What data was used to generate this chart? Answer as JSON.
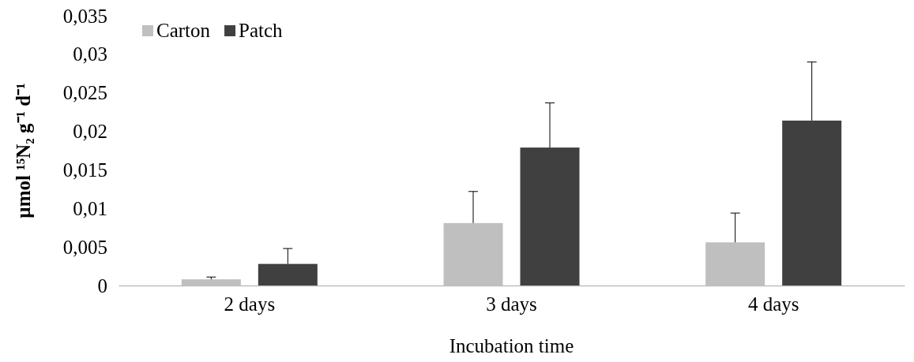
{
  "chart_data": {
    "type": "bar",
    "xlabel": "Incubation time",
    "ylabel": "µmol ¹⁵N₂ g⁻¹ d⁻¹",
    "categories": [
      "2 days",
      "3 days",
      "4 days"
    ],
    "series": [
      {
        "name": "Carton",
        "color": "#bfbfbf",
        "values": [
          0.0008,
          0.0081,
          0.0056
        ],
        "errors": [
          [
            0.0008,
            0.0011
          ],
          [
            0.0081,
            0.0122
          ],
          [
            0.0056,
            0.0094
          ]
        ]
      },
      {
        "name": "Patch",
        "color": "#404040",
        "values": [
          0.0028,
          0.0179,
          0.0214
        ],
        "errors": [
          [
            0.0028,
            0.0048
          ],
          [
            0.0179,
            0.0237
          ],
          [
            0.0214,
            0.029
          ]
        ]
      }
    ],
    "ylim": [
      0,
      0.035
    ],
    "yticks": [
      0,
      {
        "value": 0.005,
        "label": "0,005"
      },
      {
        "value": 0.01,
        "label": "0,01"
      },
      {
        "value": 0.015,
        "label": "0,015"
      },
      {
        "value": 0.02,
        "label": "0,02"
      },
      {
        "value": 0.025,
        "label": "0,025"
      },
      {
        "value": 0.03,
        "label": "0,03"
      },
      {
        "value": 0.035,
        "label": "0,035"
      }
    ],
    "legend": "top left",
    "grid": false
  }
}
